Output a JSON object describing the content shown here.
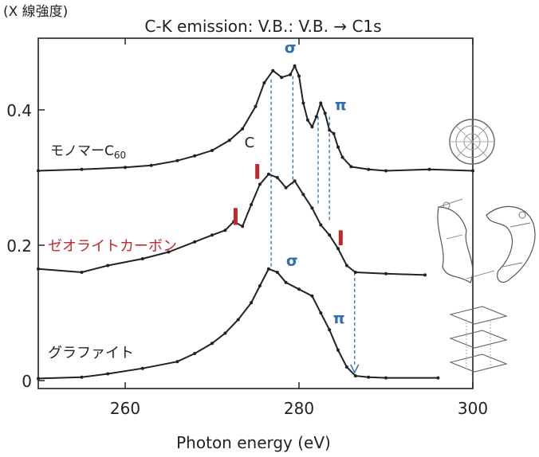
{
  "chart_data": {
    "type": "line",
    "title": "C-K emission: V.B.: V.B. → C1s",
    "ylabel": "(X 線強度)",
    "xlabel": "Photon energy (eV)",
    "xlim": [
      250,
      300
    ],
    "ylim": [
      0,
      0.5
    ],
    "x_ticks": [
      260,
      280,
      300
    ],
    "x_tick_labels": [
      "260",
      "280",
      "300"
    ],
    "y_ticks": [
      0,
      0.2,
      0.4
    ],
    "y_tick_labels": [
      "0",
      "0.2",
      "0.4"
    ],
    "grid": false,
    "legend": "none",
    "colors": {
      "data": "#222222",
      "annotation_blue": "#2f6fb0",
      "marker_red": "#c0282d"
    },
    "series": [
      {
        "name": "モノマーC60",
        "label_main": "モノマーC",
        "label_sub": "60",
        "x": [
          250,
          255,
          260,
          263,
          266,
          268,
          270,
          272,
          273.5,
          275,
          276,
          277,
          278,
          279,
          279.5,
          280,
          280.5,
          281,
          281.5,
          282,
          282.5,
          283,
          283.5,
          284,
          284.5,
          285,
          286,
          288,
          290,
          295,
          300
        ],
        "y": [
          0.31,
          0.312,
          0.315,
          0.318,
          0.325,
          0.332,
          0.34,
          0.355,
          0.372,
          0.405,
          0.44,
          0.458,
          0.448,
          0.452,
          0.465,
          0.45,
          0.41,
          0.385,
          0.375,
          0.39,
          0.41,
          0.395,
          0.37,
          0.365,
          0.345,
          0.33,
          0.316,
          0.312,
          0.31,
          0.312,
          0.31
        ]
      },
      {
        "name": "ゼオライトカーボン",
        "x": [
          250,
          255,
          258,
          262,
          265,
          268,
          270,
          271.5,
          272.5,
          273.5,
          274.5,
          275.5,
          276.5,
          277.5,
          278.5,
          279.5,
          280.5,
          281.5,
          282.5,
          283.5,
          284.5,
          285.5,
          286.5,
          290,
          294.5
        ],
        "y": [
          0.165,
          0.16,
          0.17,
          0.18,
          0.19,
          0.205,
          0.215,
          0.222,
          0.235,
          0.228,
          0.26,
          0.29,
          0.305,
          0.3,
          0.285,
          0.295,
          0.275,
          0.255,
          0.23,
          0.215,
          0.195,
          0.17,
          0.16,
          0.158,
          0.156
        ]
      },
      {
        "name": "グラファイト",
        "x": [
          250,
          255,
          258,
          262,
          266,
          268,
          270,
          271.5,
          273,
          274.5,
          275.5,
          276.5,
          277.5,
          278.5,
          280,
          281.5,
          282.5,
          283.5,
          284.5,
          285.5,
          286.5,
          288,
          290,
          296
        ],
        "y": [
          0.003,
          0.005,
          0.01,
          0.018,
          0.028,
          0.04,
          0.055,
          0.07,
          0.09,
          0.115,
          0.14,
          0.165,
          0.16,
          0.145,
          0.135,
          0.125,
          0.1,
          0.075,
          0.045,
          0.02,
          0.007,
          0.005,
          0.004,
          0.004
        ]
      }
    ],
    "peak_labels": [
      {
        "text": "σ",
        "x": 279,
        "y": 0.485
      },
      {
        "text": "π",
        "x": 284.8,
        "y": 0.4
      },
      {
        "text": "σ",
        "x": 279.2,
        "y": 0.17
      },
      {
        "text": "π",
        "x": 284.6,
        "y": 0.085
      }
    ],
    "guide_lines": [
      {
        "x": 276.8,
        "y1": 0.445,
        "y2": 0.163
      },
      {
        "x": 279.3,
        "y1": 0.45,
        "y2": 0.29
      },
      {
        "x": 282.2,
        "y1": 0.39,
        "y2": 0.258
      },
      {
        "x": 283.5,
        "y1": 0.39,
        "y2": 0.235
      }
    ],
    "arrow": {
      "x": 286.4,
      "y_from": 0.16,
      "y_to": 0.012
    },
    "marker_C": {
      "text": "C",
      "x": 274.3,
      "y": 0.345
    },
    "red_markers": [
      {
        "x": 272.7,
        "y_low": 0.23,
        "y_high": 0.255
      },
      {
        "x": 275.2,
        "y_low": 0.298,
        "y_high": 0.32
      },
      {
        "x": 284.8,
        "y_low": 0.2,
        "y_high": 0.222
      }
    ],
    "structure_images": [
      "c60-molecule-icon",
      "zeolite-carbon-structure-icon",
      "graphite-layers-icon"
    ]
  }
}
